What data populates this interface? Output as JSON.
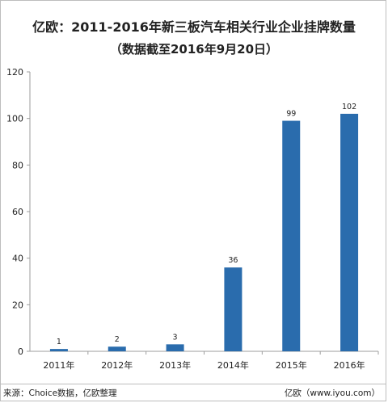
{
  "chart_data": {
    "type": "bar",
    "title": "亿欧：2011-2016年新三板汽车相关行业企业挂牌数量",
    "subtitle": "（数据截至2016年9月20日）",
    "categories": [
      "2011年",
      "2012年",
      "2013年",
      "2014年",
      "2015年",
      "2016年"
    ],
    "series": [
      {
        "values": [
          1,
          2,
          3,
          36,
          99,
          102
        ],
        "color": "#2a6cad"
      }
    ],
    "data_labels": [
      "1",
      "2",
      "3",
      "36",
      "99",
      "102"
    ],
    "yticks": [
      "0",
      "20",
      "40",
      "60",
      "80",
      "100",
      "120"
    ],
    "ylim": [
      0,
      120
    ],
    "grid": false,
    "legend": "none"
  },
  "footer": {
    "source": "来源：Choice数据，亿欧整理",
    "site": "亿欧（www.iyou.com）"
  },
  "colors": {
    "bar": "#2a6cad",
    "axis": "#9e9e9e",
    "text": "#222222"
  }
}
